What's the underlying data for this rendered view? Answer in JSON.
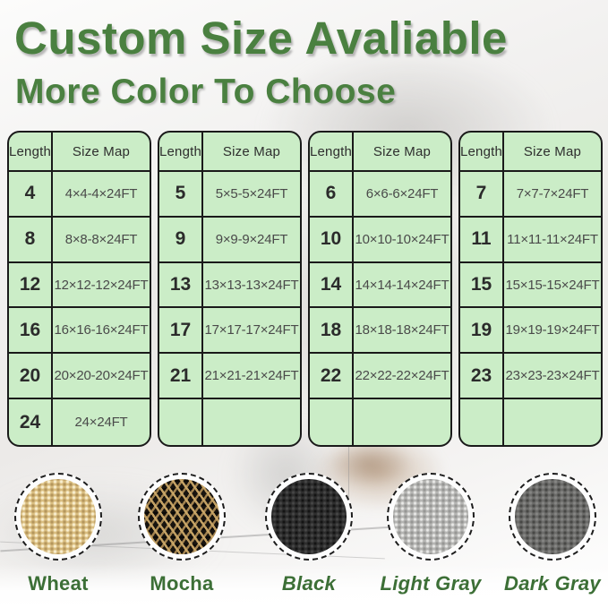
{
  "header": {
    "title": "Custom Size Avaliable",
    "subtitle": "More Color To Choose"
  },
  "size_tables": [
    {
      "columns": {
        "length": "Length",
        "size_map": "Size Map"
      },
      "rows": [
        {
          "length": "4",
          "size": "4×4-4×24FT"
        },
        {
          "length": "8",
          "size": "8×8-8×24FT"
        },
        {
          "length": "12",
          "size": "12×12-12×24FT"
        },
        {
          "length": "16",
          "size": "16×16-16×24FT"
        },
        {
          "length": "20",
          "size": "20×20-20×24FT"
        },
        {
          "length": "24",
          "size": "24×24FT"
        }
      ]
    },
    {
      "columns": {
        "length": "Length",
        "size_map": "Size Map"
      },
      "rows": [
        {
          "length": "5",
          "size": "5×5-5×24FT"
        },
        {
          "length": "9",
          "size": "9×9-9×24FT"
        },
        {
          "length": "13",
          "size": "13×13-13×24FT"
        },
        {
          "length": "17",
          "size": "17×17-17×24FT"
        },
        {
          "length": "21",
          "size": "21×21-21×24FT"
        },
        {
          "length": "",
          "size": ""
        }
      ]
    },
    {
      "columns": {
        "length": "Length",
        "size_map": "Size Map"
      },
      "rows": [
        {
          "length": "6",
          "size": "6×6-6×24FT"
        },
        {
          "length": "10",
          "size": "10×10-10×24FT"
        },
        {
          "length": "14",
          "size": "14×14-14×24FT"
        },
        {
          "length": "18",
          "size": "18×18-18×24FT"
        },
        {
          "length": "22",
          "size": "22×22-22×24FT"
        },
        {
          "length": "",
          "size": ""
        }
      ]
    },
    {
      "columns": {
        "length": "Length",
        "size_map": "Size Map"
      },
      "rows": [
        {
          "length": "7",
          "size": "7×7-7×24FT"
        },
        {
          "length": "11",
          "size": "11×11-11×24FT"
        },
        {
          "length": "15",
          "size": "15×15-15×24FT"
        },
        {
          "length": "19",
          "size": "19×19-19×24FT"
        },
        {
          "length": "23",
          "size": "23×23-23×24FT"
        },
        {
          "length": "",
          "size": ""
        }
      ]
    }
  ],
  "color_swatches": [
    {
      "label": "Wheat",
      "texture": "wheat",
      "italic": false,
      "base_color": "#d9bd80"
    },
    {
      "label": "Mocha",
      "texture": "mocha",
      "italic": false,
      "base_color": "#18140f"
    },
    {
      "label": "Black",
      "texture": "black",
      "italic": true,
      "base_color": "#2d2d2d"
    },
    {
      "label": "Light Gray",
      "texture": "light-gray",
      "italic": true,
      "base_color": "#b5b5b3"
    },
    {
      "label": "Dark Gray",
      "texture": "dark-gray",
      "italic": true,
      "base_color": "#6b6b69"
    }
  ],
  "theme": {
    "heading_green": "#4a8040",
    "swatch_label_green": "#3c6f36",
    "table_fill_green": "#cbedc7",
    "table_border": "#1a1a1a"
  }
}
